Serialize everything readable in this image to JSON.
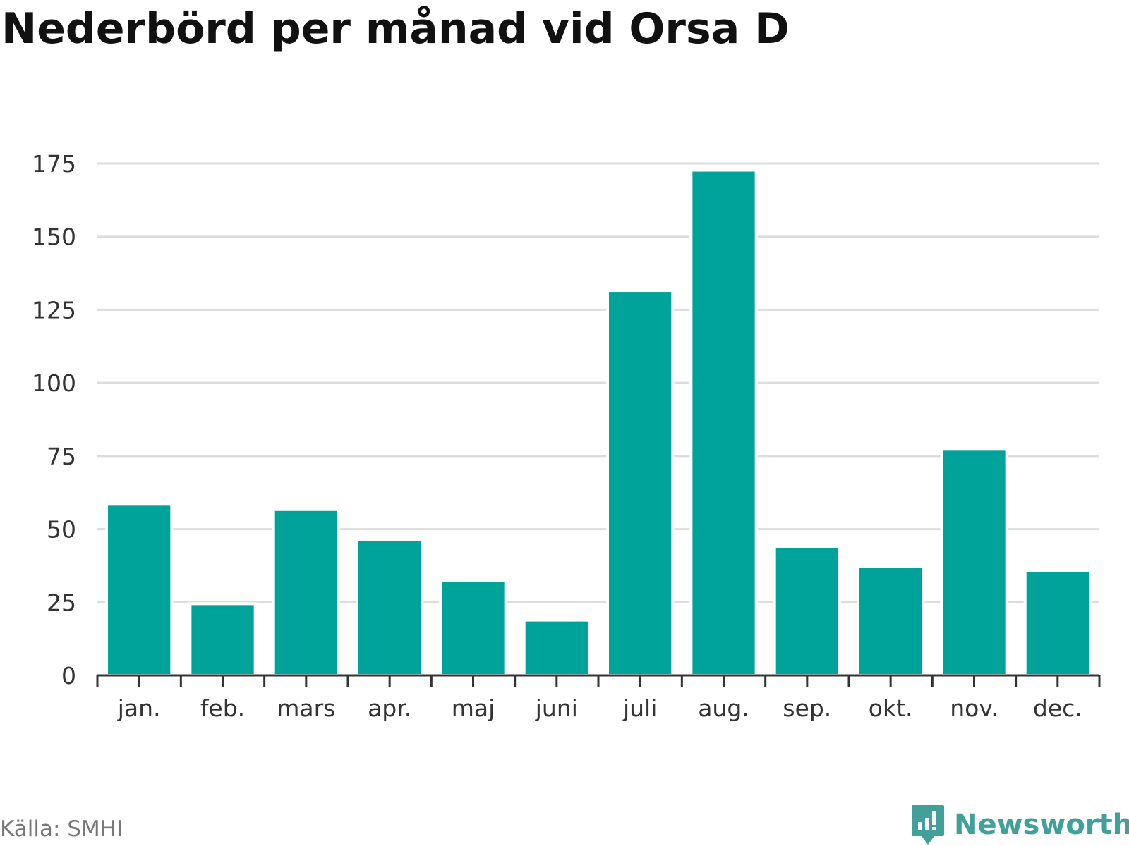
{
  "page": {
    "source": "Källa: SMHI",
    "brand_name": "Newsworthy",
    "brand_icon": "bar-chart-chat-bubble-icon"
  },
  "colors": {
    "bar": "#00a39a",
    "grid": "#dddddd",
    "axis": "#333333",
    "title": "#111111",
    "brand": "#41a09a",
    "source": "#777777"
  },
  "chart_data": {
    "type": "bar",
    "title": "Nederbörd per månad vid Orsa D",
    "xlabel": "",
    "ylabel": "",
    "categories": [
      "jan.",
      "feb.",
      "mars",
      "apr.",
      "maj",
      "juni",
      "juli",
      "aug.",
      "sep.",
      "okt.",
      "nov.",
      "dec."
    ],
    "values": [
      58.5,
      24.5,
      56.7,
      46.4,
      32.3,
      18.9,
      131.6,
      172.7,
      43.9,
      37.2,
      77.3,
      35.7
    ],
    "ylim": [
      0,
      175
    ],
    "yticks": [
      "0",
      "25",
      "50",
      "75",
      "100",
      "125",
      "150",
      "175"
    ],
    "grid": true,
    "legend": "none"
  }
}
